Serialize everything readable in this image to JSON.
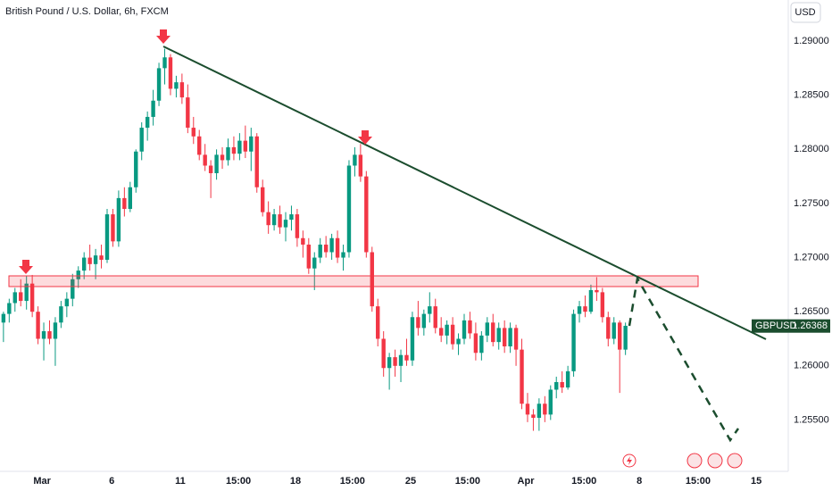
{
  "chart_data": {
    "type": "candlestick",
    "title": "British Pound / U.S. Dollar, 6h, FXCM",
    "currency": "USD",
    "symbol": "GBPUSD",
    "last_price": 1.26368,
    "up_color": "#089981",
    "down_color": "#f23645",
    "ylim": [
      1.2505,
      1.2938
    ],
    "yticks": [
      {
        "value": 1.29,
        "label": "1.29000"
      },
      {
        "value": 1.285,
        "label": "1.28500"
      },
      {
        "value": 1.28,
        "label": "1.28000"
      },
      {
        "value": 1.275,
        "label": "1.27500"
      },
      {
        "value": 1.27,
        "label": "1.27000"
      },
      {
        "value": 1.265,
        "label": "1.26500"
      },
      {
        "value": 1.26,
        "label": "1.26000"
      },
      {
        "value": 1.255,
        "label": "1.25500"
      }
    ],
    "xlim": [
      -0.6,
      135.8
    ],
    "xticks": [
      {
        "value": 6.7,
        "label": "Mar"
      },
      {
        "value": 18.8,
        "label": "6"
      },
      {
        "value": 30.7,
        "label": "11"
      },
      {
        "value": 40.8,
        "label": "15:00"
      },
      {
        "value": 50.7,
        "label": "18"
      },
      {
        "value": 60.6,
        "label": "15:00"
      },
      {
        "value": 70.7,
        "label": "25"
      },
      {
        "value": 80.6,
        "label": "15:00"
      },
      {
        "value": 90.7,
        "label": "Apr"
      },
      {
        "value": 100.8,
        "label": "15:00"
      },
      {
        "value": 110.4,
        "label": "8"
      },
      {
        "value": 120.6,
        "label": "15:00"
      },
      {
        "value": 130.7,
        "label": "15"
      }
    ],
    "open": [
      1.264,
      1.2648,
      1.2658,
      1.2668,
      1.266,
      1.2676,
      1.265,
      1.2625,
      1.2632,
      1.2625,
      1.264,
      1.2655,
      1.2662,
      1.268,
      1.2688,
      1.27,
      1.2694,
      1.2702,
      1.2698,
      1.274,
      1.2715,
      1.2755,
      1.2745,
      1.2765,
      1.2798,
      1.282,
      1.283,
      1.2845,
      1.2875,
      1.2885,
      1.2856,
      1.2862,
      1.2848,
      1.282,
      1.2812,
      1.2795,
      1.2785,
      1.2778,
      1.2795,
      1.279,
      1.2802,
      1.2796,
      1.2808,
      1.2798,
      1.2812,
      1.2765,
      1.2742,
      1.273,
      1.274,
      1.2728,
      1.2735,
      1.274,
      1.2718,
      1.2712,
      1.269,
      1.27,
      1.2712,
      1.2705,
      1.2718,
      1.27,
      1.2705,
      1.2785,
      1.2795,
      1.2775,
      1.2705,
      1.2655,
      1.2625,
      1.2598,
      1.2608,
      1.26,
      1.261,
      1.2605,
      1.2645,
      1.2635,
      1.2648,
      1.2655,
      1.2635,
      1.2628,
      1.2638,
      1.262,
      1.2625,
      1.2642,
      1.263,
      1.2612,
      1.2628,
      1.264,
      1.2622,
      1.2635,
      1.2618,
      1.2635,
      1.2615,
      1.2565,
      1.2555,
      1.2552,
      1.2565,
      1.2555,
      1.2578,
      1.2585,
      1.258,
      1.2595,
      1.2648,
      1.2655,
      1.265,
      1.267,
      1.2668,
      1.2645,
      1.2625,
      1.264,
      1.2615
    ],
    "high": [
      1.265,
      1.2662,
      1.2672,
      1.268,
      1.2683,
      1.2684,
      1.2655,
      1.264,
      1.2642,
      1.2645,
      1.266,
      1.2668,
      1.2685,
      1.2692,
      1.2705,
      1.2712,
      1.2708,
      1.2712,
      1.2745,
      1.2745,
      1.2762,
      1.2765,
      1.277,
      1.28,
      1.2825,
      1.2835,
      1.2855,
      1.288,
      1.2893,
      1.2888,
      1.2868,
      1.287,
      1.286,
      1.283,
      1.2818,
      1.2805,
      1.279,
      1.28,
      1.2802,
      1.281,
      1.2812,
      1.2815,
      1.2822,
      1.282,
      1.2815,
      1.2772,
      1.2752,
      1.2745,
      1.2748,
      1.2742,
      1.2748,
      1.2745,
      1.2725,
      1.2718,
      1.2705,
      1.2718,
      1.272,
      1.2722,
      1.2725,
      1.2712,
      1.279,
      1.2802,
      1.2805,
      1.278,
      1.271,
      1.2662,
      1.2632,
      1.2612,
      1.2615,
      1.2615,
      1.2625,
      1.265,
      1.266,
      1.2652,
      1.2668,
      1.2662,
      1.2645,
      1.2642,
      1.2645,
      1.263,
      1.2648,
      1.265,
      1.264,
      1.2632,
      1.2645,
      1.2648,
      1.264,
      1.2642,
      1.264,
      1.2638,
      1.2625,
      1.2575,
      1.256,
      1.257,
      1.2572,
      1.2582,
      1.259,
      1.2595,
      1.26,
      1.2652,
      1.266,
      1.2665,
      1.2675,
      1.2682,
      1.2672,
      1.265,
      1.2645,
      1.2642,
      1.264
    ],
    "low": [
      1.2622,
      1.264,
      1.265,
      1.2655,
      1.2652,
      1.2645,
      1.262,
      1.2605,
      1.262,
      1.26,
      1.2635,
      1.2645,
      1.2655,
      1.2672,
      1.268,
      1.2688,
      1.268,
      1.269,
      1.2695,
      1.271,
      1.271,
      1.2738,
      1.2742,
      1.276,
      1.279,
      1.2808,
      1.2822,
      1.284,
      1.286,
      1.285,
      1.2848,
      1.2842,
      1.2815,
      1.2805,
      1.279,
      1.278,
      1.2755,
      1.2772,
      1.2782,
      1.2785,
      1.279,
      1.279,
      1.2792,
      1.278,
      1.276,
      1.2738,
      1.2722,
      1.2725,
      1.2722,
      1.2715,
      1.2725,
      1.271,
      1.27,
      1.2685,
      1.267,
      1.2695,
      1.27,
      1.2698,
      1.2695,
      1.2688,
      1.27,
      1.2775,
      1.277,
      1.27,
      1.265,
      1.2618,
      1.259,
      1.2578,
      1.259,
      1.2585,
      1.26,
      1.26,
      1.2628,
      1.2628,
      1.264,
      1.263,
      1.2622,
      1.262,
      1.2615,
      1.261,
      1.262,
      1.2625,
      1.2605,
      1.2605,
      1.2622,
      1.2618,
      1.2615,
      1.2612,
      1.2612,
      1.26,
      1.256,
      1.2548,
      1.254,
      1.254,
      1.2548,
      1.255,
      1.257,
      1.2575,
      1.2578,
      1.259,
      1.264,
      1.2645,
      1.2648,
      1.266,
      1.264,
      1.2618,
      1.262,
      1.2575,
      1.261
    ],
    "close": [
      1.2648,
      1.2658,
      1.2668,
      1.266,
      1.2676,
      1.265,
      1.2625,
      1.2632,
      1.2625,
      1.264,
      1.2655,
      1.2662,
      1.268,
      1.2688,
      1.27,
      1.2694,
      1.2702,
      1.2698,
      1.274,
      1.2715,
      1.2755,
      1.2745,
      1.2765,
      1.2798,
      1.282,
      1.283,
      1.2845,
      1.2875,
      1.2885,
      1.2856,
      1.2862,
      1.2848,
      1.282,
      1.2812,
      1.2795,
      1.2785,
      1.2778,
      1.2795,
      1.279,
      1.2802,
      1.2796,
      1.2808,
      1.2798,
      1.2812,
      1.2765,
      1.2742,
      1.273,
      1.274,
      1.2728,
      1.2735,
      1.274,
      1.2718,
      1.2712,
      1.269,
      1.27,
      1.2712,
      1.2705,
      1.2718,
      1.27,
      1.2705,
      1.2785,
      1.2795,
      1.2775,
      1.2705,
      1.2655,
      1.2625,
      1.2598,
      1.2608,
      1.26,
      1.261,
      1.2605,
      1.2645,
      1.2635,
      1.2648,
      1.2655,
      1.2635,
      1.2628,
      1.2638,
      1.262,
      1.2625,
      1.2642,
      1.263,
      1.2612,
      1.2628,
      1.264,
      1.2622,
      1.2635,
      1.2618,
      1.2635,
      1.2615,
      1.2565,
      1.2555,
      1.2552,
      1.2565,
      1.2555,
      1.2578,
      1.2585,
      1.258,
      1.2595,
      1.2648,
      1.2655,
      1.265,
      1.267,
      1.2668,
      1.2645,
      1.2625,
      1.264,
      1.2615,
      1.2637
    ]
  }
}
